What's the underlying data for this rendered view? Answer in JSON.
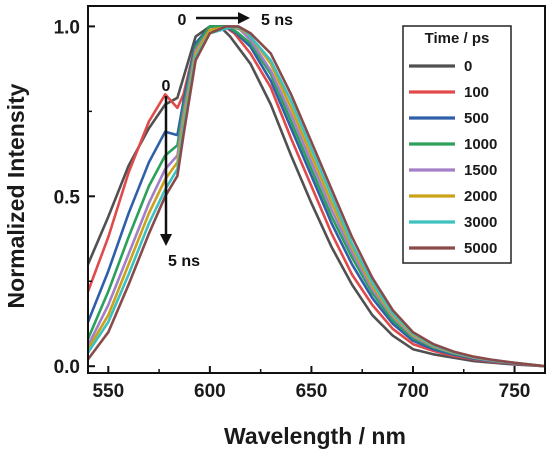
{
  "chart_data": {
    "type": "line",
    "xlabel": "Wavelength / nm",
    "ylabel": "Normalized Intensity",
    "xlim": [
      540,
      765
    ],
    "ylim": [
      -0.02,
      1.06
    ],
    "xticks": [
      550,
      600,
      650,
      700,
      750
    ],
    "xtick_labels": [
      "550",
      "600",
      "650",
      "700",
      "750"
    ],
    "yticks": [
      0.0,
      0.5,
      1.0
    ],
    "ytick_labels": [
      "0.0",
      "0.5",
      "1.0"
    ],
    "grid": false,
    "legend_title": "Time / ps",
    "legend_position": "top-right",
    "annotations": {
      "top_start": "0",
      "top_end": "5 ns",
      "side_start": "0",
      "side_end": "5 ns"
    },
    "series": [
      {
        "name": "0",
        "color": "#505050",
        "peak": 605,
        "shoulder": 0.78,
        "x": [
          540,
          550,
          560,
          570,
          578,
          584,
          587,
          593,
          600,
          605,
          610,
          620,
          630,
          640,
          650,
          660,
          670,
          680,
          690,
          700,
          710,
          720,
          730,
          740,
          750,
          765
        ],
        "y": [
          0.3,
          0.44,
          0.59,
          0.7,
          0.77,
          0.79,
          0.85,
          0.97,
          1.0,
          1.0,
          0.97,
          0.89,
          0.77,
          0.62,
          0.48,
          0.35,
          0.24,
          0.15,
          0.09,
          0.05,
          0.035,
          0.025,
          0.015,
          0.01,
          0.005,
          0.0
        ]
      },
      {
        "name": "100",
        "color": "#e04a4a",
        "peak": 607,
        "shoulder": 0.8,
        "x": [
          540,
          550,
          560,
          570,
          578,
          584,
          587,
          593,
          600,
          607,
          612,
          620,
          630,
          640,
          650,
          660,
          670,
          680,
          690,
          700,
          710,
          720,
          730,
          740,
          750,
          765
        ],
        "y": [
          0.22,
          0.38,
          0.57,
          0.72,
          0.8,
          0.76,
          0.8,
          0.95,
          1.0,
          1.0,
          0.98,
          0.92,
          0.82,
          0.67,
          0.53,
          0.39,
          0.27,
          0.18,
          0.11,
          0.065,
          0.045,
          0.03,
          0.02,
          0.012,
          0.007,
          0.0
        ]
      },
      {
        "name": "500",
        "color": "#2f5fa8",
        "peak": 608,
        "shoulder": 0.69,
        "x": [
          540,
          550,
          560,
          570,
          578,
          584,
          587,
          593,
          600,
          608,
          613,
          620,
          630,
          640,
          650,
          660,
          670,
          680,
          690,
          700,
          710,
          720,
          730,
          740,
          750,
          765
        ],
        "y": [
          0.13,
          0.28,
          0.45,
          0.6,
          0.69,
          0.68,
          0.78,
          0.95,
          1.0,
          1.0,
          0.98,
          0.94,
          0.84,
          0.7,
          0.56,
          0.42,
          0.3,
          0.2,
          0.125,
          0.075,
          0.05,
          0.034,
          0.022,
          0.014,
          0.008,
          0.0
        ]
      },
      {
        "name": "1000",
        "color": "#2aa05a",
        "peak": 609,
        "shoulder": 0.62,
        "x": [
          540,
          550,
          560,
          570,
          578,
          584,
          587,
          593,
          600,
          609,
          614,
          620,
          630,
          640,
          650,
          660,
          670,
          680,
          690,
          700,
          710,
          720,
          730,
          740,
          750,
          765
        ],
        "y": [
          0.08,
          0.22,
          0.38,
          0.53,
          0.62,
          0.65,
          0.76,
          0.94,
          1.0,
          1.0,
          0.98,
          0.95,
          0.86,
          0.72,
          0.58,
          0.44,
          0.32,
          0.215,
          0.135,
          0.082,
          0.055,
          0.037,
          0.024,
          0.015,
          0.009,
          0.0
        ]
      },
      {
        "name": "1500",
        "color": "#a37fc8",
        "peak": 610,
        "shoulder": 0.58,
        "x": [
          540,
          550,
          560,
          570,
          578,
          584,
          587,
          593,
          600,
          610,
          615,
          620,
          630,
          640,
          650,
          660,
          670,
          680,
          690,
          700,
          710,
          720,
          730,
          740,
          750,
          765
        ],
        "y": [
          0.06,
          0.18,
          0.33,
          0.48,
          0.58,
          0.62,
          0.74,
          0.93,
          0.99,
          1.0,
          0.99,
          0.96,
          0.87,
          0.74,
          0.6,
          0.46,
          0.335,
          0.225,
          0.145,
          0.088,
          0.058,
          0.039,
          0.025,
          0.016,
          0.009,
          0.0
        ]
      },
      {
        "name": "2000",
        "color": "#c9a21a",
        "peak": 611,
        "shoulder": 0.55,
        "x": [
          540,
          550,
          560,
          570,
          578,
          584,
          587,
          593,
          600,
          611,
          616,
          620,
          630,
          640,
          650,
          660,
          670,
          680,
          690,
          700,
          710,
          720,
          730,
          740,
          750,
          765
        ],
        "y": [
          0.05,
          0.15,
          0.3,
          0.45,
          0.55,
          0.6,
          0.72,
          0.92,
          0.99,
          1.0,
          0.99,
          0.97,
          0.89,
          0.76,
          0.62,
          0.48,
          0.35,
          0.235,
          0.15,
          0.092,
          0.06,
          0.04,
          0.026,
          0.017,
          0.01,
          0.0
        ]
      },
      {
        "name": "3000",
        "color": "#3cc0c0",
        "peak": 612,
        "shoulder": 0.53,
        "x": [
          540,
          550,
          560,
          570,
          578,
          584,
          587,
          593,
          600,
          612,
          617,
          620,
          630,
          640,
          650,
          660,
          670,
          680,
          690,
          700,
          710,
          720,
          730,
          740,
          750,
          765
        ],
        "y": [
          0.04,
          0.13,
          0.27,
          0.42,
          0.52,
          0.58,
          0.7,
          0.91,
          0.98,
          1.0,
          0.99,
          0.97,
          0.9,
          0.78,
          0.64,
          0.5,
          0.36,
          0.245,
          0.155,
          0.096,
          0.062,
          0.041,
          0.027,
          0.017,
          0.01,
          0.0
        ]
      },
      {
        "name": "5000",
        "color": "#8a4a4a",
        "peak": 614,
        "shoulder": 0.52,
        "x": [
          540,
          550,
          560,
          570,
          578,
          584,
          587,
          593,
          600,
          608,
          614,
          620,
          630,
          640,
          650,
          660,
          670,
          680,
          690,
          700,
          710,
          720,
          730,
          740,
          750,
          765
        ],
        "y": [
          0.02,
          0.1,
          0.24,
          0.39,
          0.5,
          0.56,
          0.68,
          0.9,
          0.98,
          1.0,
          1.0,
          0.98,
          0.92,
          0.8,
          0.66,
          0.52,
          0.38,
          0.26,
          0.165,
          0.1,
          0.065,
          0.043,
          0.028,
          0.018,
          0.01,
          0.0
        ]
      }
    ]
  }
}
